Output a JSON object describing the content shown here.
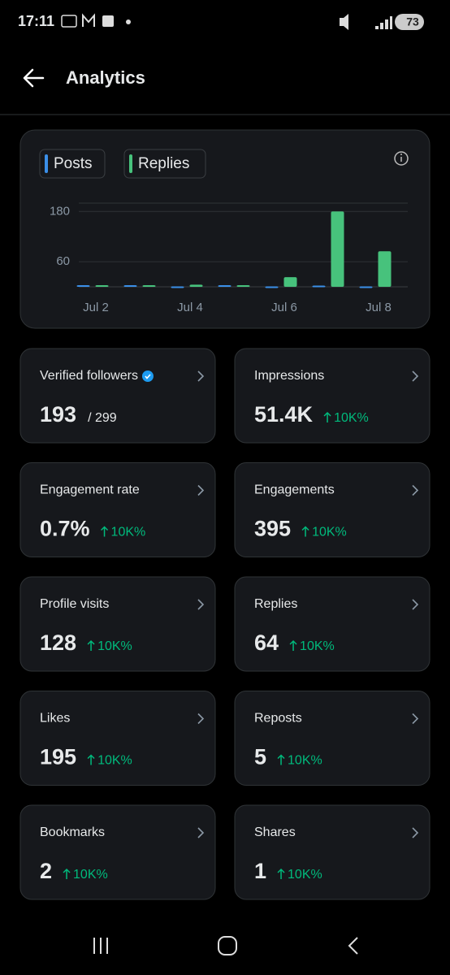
{
  "status_bar": {
    "time": "17:11",
    "battery": "73"
  },
  "header": {
    "title": "Analytics"
  },
  "chart_data": {
    "type": "bar",
    "categories": [
      "Jul 2",
      null,
      "Jul 4",
      null,
      "Jul 6",
      null,
      "Jul 8"
    ],
    "series": [
      {
        "name": "Posts",
        "color": "#3b8fe8",
        "values": [
          0,
          0,
          1,
          0,
          1,
          3,
          1
        ]
      },
      {
        "name": "Replies",
        "color": "#47c27c",
        "values": [
          0,
          0,
          5,
          0,
          23,
          180,
          85
        ]
      }
    ],
    "ylim": [
      0,
      200
    ],
    "yticks": [
      60,
      180
    ],
    "grid": true
  },
  "cards": [
    {
      "label": "Verified followers",
      "value": "193",
      "total": "/ 299"
    },
    {
      "label": "Impressions",
      "value": "51.4K",
      "change": "10K%"
    },
    {
      "label": "Engagement rate",
      "value": "0.7%",
      "change": "10K%"
    },
    {
      "label": "Engagements",
      "value": "395",
      "change": "10K%"
    },
    {
      "label": "Profile visits",
      "value": "128",
      "change": "10K%"
    },
    {
      "label": "Replies",
      "value": "64",
      "change": "10K%"
    },
    {
      "label": "Likes",
      "value": "195",
      "change": "10K%"
    },
    {
      "label": "Reposts",
      "value": "5",
      "change": "10K%"
    },
    {
      "label": "Bookmarks",
      "value": "2",
      "change": "10K%"
    },
    {
      "label": "Shares",
      "value": "1",
      "change": "10K%"
    }
  ]
}
